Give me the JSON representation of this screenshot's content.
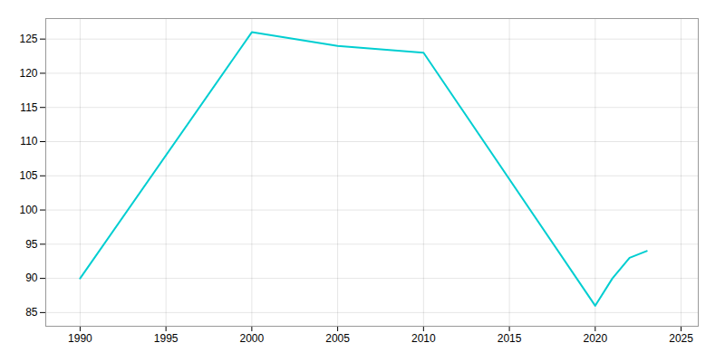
{
  "chart_data": {
    "type": "line",
    "x": [
      1990,
      2000,
      2005,
      2010,
      2020,
      2021,
      2022,
      2023
    ],
    "values": [
      90,
      126,
      124,
      123,
      86,
      90,
      93,
      94
    ],
    "color": "#00CED1",
    "xlim": [
      1988,
      2026
    ],
    "ylim": [
      83,
      128
    ],
    "xticks": [
      1990,
      1995,
      2000,
      2005,
      2010,
      2015,
      2020,
      2025
    ],
    "yticks": [
      85,
      90,
      95,
      100,
      105,
      110,
      115,
      120,
      125
    ],
    "grid": true
  }
}
